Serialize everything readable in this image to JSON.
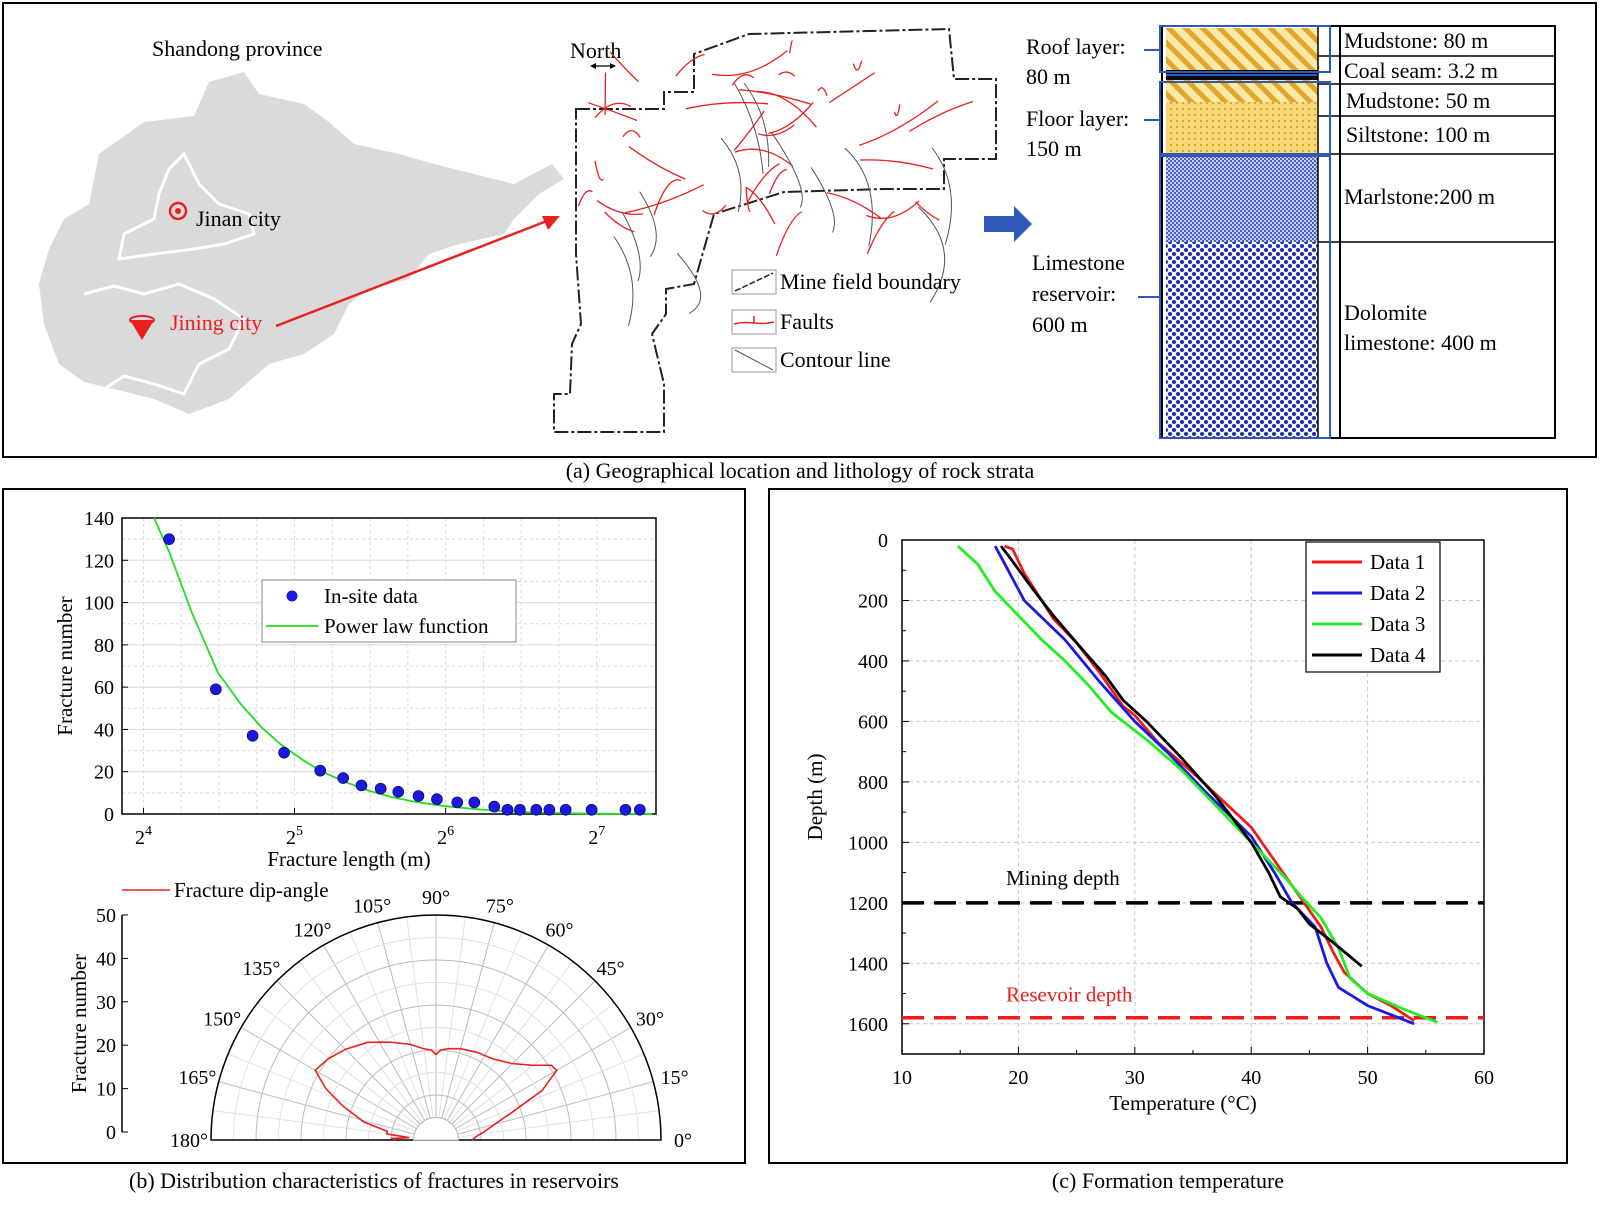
{
  "panel_a": {
    "caption": "(a) Geographical location and lithology of rock strata",
    "map": {
      "province_label": "Shandong province",
      "jinan_label": "Jinan city",
      "jining_label": "Jining city",
      "marker_color": "#e8211f",
      "land_color": "#dadada"
    },
    "mine": {
      "north_label": "North",
      "legend": [
        {
          "label": "Mine field boundary",
          "icon": "boundary-line-icon"
        },
        {
          "label": "Faults",
          "icon": "fault-line-icon"
        },
        {
          "label": "Contour line",
          "icon": "contour-line-icon"
        }
      ],
      "fault_color": "#e8211f"
    },
    "strata": {
      "left_labels": [
        {
          "lines": [
            "Roof layer:",
            "80 m"
          ]
        },
        {
          "lines": [
            "Floor layer:",
            "150 m"
          ]
        },
        {
          "lines": [
            "Limestone",
            "reservoir:",
            "600 m"
          ]
        }
      ],
      "layers": [
        {
          "name": "Mudstone: 80 m",
          "pattern": "hatch-yellow"
        },
        {
          "name": "Coal seam: 3.2 m",
          "pattern": "coal-black"
        },
        {
          "name": "Mudstone: 50 m",
          "pattern": "hatch-yellow"
        },
        {
          "name": "Siltstone: 100 m",
          "pattern": "dots-yellow"
        },
        {
          "name": "Marlstone:200 m",
          "pattern": "fine-blue"
        },
        {
          "name": "Dolomite limestone: 400 m",
          "lines": [
            "Dolomite",
            "limestone: 400 m"
          ],
          "pattern": "dots-blue"
        }
      ],
      "bracket_color": "#2f59b8"
    }
  },
  "chart_data": [
    {
      "id": "fracture-length",
      "type": "scatter",
      "xlabel": "Fracture length (m)",
      "ylabel": "Fracture number",
      "x_scale": "log2",
      "xlim": [
        14.5,
        168
      ],
      "ylim": [
        0,
        140
      ],
      "x_ticks": [
        {
          "value": 16,
          "base": "2",
          "exp": "4"
        },
        {
          "value": 32,
          "base": "2",
          "exp": "5"
        },
        {
          "value": 64,
          "base": "2",
          "exp": "6"
        },
        {
          "value": 128,
          "base": "2",
          "exp": "7"
        }
      ],
      "y_ticks": [
        0,
        20,
        40,
        60,
        80,
        100,
        120,
        140
      ],
      "grid": true,
      "legend_position": "top-center",
      "series": [
        {
          "name": "In-site data",
          "kind": "points",
          "color": "#1a1adf",
          "points": [
            [
              18.0,
              130
            ],
            [
              22.3,
              59
            ],
            [
              26.4,
              37
            ],
            [
              30.5,
              29
            ],
            [
              36.0,
              20.5
            ],
            [
              40.0,
              17
            ],
            [
              43.5,
              13.5
            ],
            [
              47.5,
              12
            ],
            [
              51.5,
              10.5
            ],
            [
              56.5,
              8.5
            ],
            [
              61.5,
              7
            ],
            [
              67.5,
              5.5
            ],
            [
              73.0,
              5.5
            ],
            [
              80.0,
              3.5
            ],
            [
              85.0,
              2
            ],
            [
              90.0,
              2
            ],
            [
              97.0,
              2
            ],
            [
              103.0,
              2
            ],
            [
              111.0,
              2
            ],
            [
              125.0,
              2
            ],
            [
              146.0,
              2
            ],
            [
              156.0,
              2
            ]
          ]
        },
        {
          "name": "Power law function",
          "kind": "curve",
          "color": "#22dd22",
          "points": [
            [
              16.8,
              140
            ],
            [
              18,
              124
            ],
            [
              20,
              95
            ],
            [
              22.5,
              67
            ],
            [
              25,
              52
            ],
            [
              27.5,
              41
            ],
            [
              30,
              33
            ],
            [
              33,
              26
            ],
            [
              36,
              20.5
            ],
            [
              40,
              15.5
            ],
            [
              45,
              11
            ],
            [
              50,
              8
            ],
            [
              56,
              5.6
            ],
            [
              64,
              3.7
            ],
            [
              72,
              2.5
            ],
            [
              80,
              1.6
            ],
            [
              90,
              1.0
            ],
            [
              100,
              0.6
            ],
            [
              112,
              0.35
            ],
            [
              128,
              0.15
            ],
            [
              145,
              0.06
            ],
            [
              165,
              0.02
            ]
          ]
        }
      ]
    },
    {
      "id": "dip-angle",
      "type": "polar-line",
      "legend": "Fracture dip-angle",
      "ylabel": "Fracture number",
      "r_ticks": [
        0,
        10,
        20,
        30,
        40,
        50
      ],
      "rlim": [
        0,
        50
      ],
      "theta_ticks": [
        "0°",
        "15°",
        "30°",
        "45°",
        "60°",
        "75°",
        "90°",
        "105°",
        "120°",
        "135°",
        "150°",
        "165°",
        "180°"
      ],
      "color": "#e8211f",
      "points": [
        [
          0,
          8
        ],
        [
          5,
          9
        ],
        [
          10,
          11
        ],
        [
          15,
          13.5
        ],
        [
          20,
          18
        ],
        [
          25,
          26
        ],
        [
          30,
          31
        ],
        [
          33,
          30.5
        ],
        [
          38,
          27
        ],
        [
          45,
          24
        ],
        [
          55,
          22
        ],
        [
          65,
          21.5
        ],
        [
          75,
          21
        ],
        [
          82,
          20.5
        ],
        [
          87,
          20
        ],
        [
          90,
          19
        ],
        [
          93,
          20
        ],
        [
          98,
          20.5
        ],
        [
          105,
          22
        ],
        [
          115,
          24
        ],
        [
          125,
          26.5
        ],
        [
          135,
          28.5
        ],
        [
          143,
          30
        ],
        [
          150,
          31
        ],
        [
          155,
          27
        ],
        [
          160,
          22
        ],
        [
          166,
          16.5
        ],
        [
          170,
          11
        ],
        [
          173,
          11
        ],
        [
          175,
          6
        ],
        [
          178,
          10
        ],
        [
          180,
          9
        ]
      ]
    },
    {
      "id": "formation-temperature",
      "type": "line",
      "xlabel": "Temperature (°C)",
      "ylabel": "Depth (m)",
      "xlim": [
        10,
        60
      ],
      "ylim": [
        1700,
        0
      ],
      "x_ticks": [
        10,
        20,
        30,
        40,
        50,
        60
      ],
      "y_ticks": [
        0,
        200,
        400,
        600,
        800,
        1000,
        1200,
        1400,
        1600
      ],
      "grid": true,
      "legend_position": "top-right",
      "annotations": [
        {
          "label": "Mining depth",
          "depth": 1200,
          "color": "#000000"
        },
        {
          "label": "Resevoir depth",
          "depth": 1580,
          "color": "#ee1c1c"
        }
      ],
      "series": [
        {
          "name": "Data 1",
          "color": "#ee1c1c",
          "points": [
            [
              18.8,
              20
            ],
            [
              19.5,
              30
            ],
            [
              20.5,
              110
            ],
            [
              22,
              200
            ],
            [
              23,
              260
            ],
            [
              25,
              340
            ],
            [
              27,
              440
            ],
            [
              29,
              550
            ],
            [
              30,
              580
            ],
            [
              32,
              670
            ],
            [
              35,
              770
            ],
            [
              40,
              950
            ],
            [
              42,
              1060
            ],
            [
              44,
              1170
            ],
            [
              46,
              1280
            ],
            [
              47,
              1360
            ],
            [
              48,
              1430
            ],
            [
              50,
              1500
            ],
            [
              52,
              1540
            ],
            [
              54,
              1590
            ]
          ]
        },
        {
          "name": "Data 2",
          "color": "#1a1adf",
          "points": [
            [
              18,
              20
            ],
            [
              18.7,
              70
            ],
            [
              20.5,
              200
            ],
            [
              24,
              330
            ],
            [
              27,
              470
            ],
            [
              30,
              600
            ],
            [
              33,
              710
            ],
            [
              36,
              830
            ],
            [
              40,
              980
            ],
            [
              42,
              1100
            ],
            [
              43.5,
              1200
            ],
            [
              45.5,
              1280
            ],
            [
              46.5,
              1400
            ],
            [
              47.5,
              1480
            ],
            [
              50,
              1540
            ],
            [
              52,
              1570
            ],
            [
              54,
              1600
            ]
          ]
        },
        {
          "name": "Data 3",
          "color": "#22ee22",
          "points": [
            [
              14.8,
              20
            ],
            [
              16.5,
              80
            ],
            [
              18,
              170
            ],
            [
              20,
              250
            ],
            [
              22,
              330
            ],
            [
              24,
              400
            ],
            [
              26,
              480
            ],
            [
              28,
              570
            ],
            [
              31,
              660
            ],
            [
              34,
              760
            ],
            [
              38,
              920
            ],
            [
              41,
              1040
            ],
            [
              43,
              1120
            ],
            [
              44.3,
              1180
            ],
            [
              46,
              1250
            ],
            [
              47.5,
              1350
            ],
            [
              48.5,
              1450
            ],
            [
              50,
              1500
            ],
            [
              53,
              1550
            ],
            [
              56,
              1595
            ]
          ]
        },
        {
          "name": "Data 4",
          "color": "#000000",
          "points": [
            [
              18.5,
              20
            ],
            [
              19.3,
              60
            ],
            [
              21,
              150
            ],
            [
              23,
              250
            ],
            [
              25,
              340
            ],
            [
              27.5,
              450
            ],
            [
              29,
              530
            ],
            [
              31,
              600
            ],
            [
              34,
              720
            ],
            [
              37,
              850
            ],
            [
              40,
              1000
            ],
            [
              41.5,
              1100
            ],
            [
              42.5,
              1180
            ],
            [
              44,
              1220
            ],
            [
              45,
              1270
            ],
            [
              47,
              1330
            ],
            [
              49.5,
              1410
            ]
          ]
        }
      ]
    }
  ],
  "panel_b": {
    "caption": "(b) Distribution characteristics of fractures in reservoirs"
  },
  "panel_c": {
    "caption": "(c) Formation temperature"
  }
}
